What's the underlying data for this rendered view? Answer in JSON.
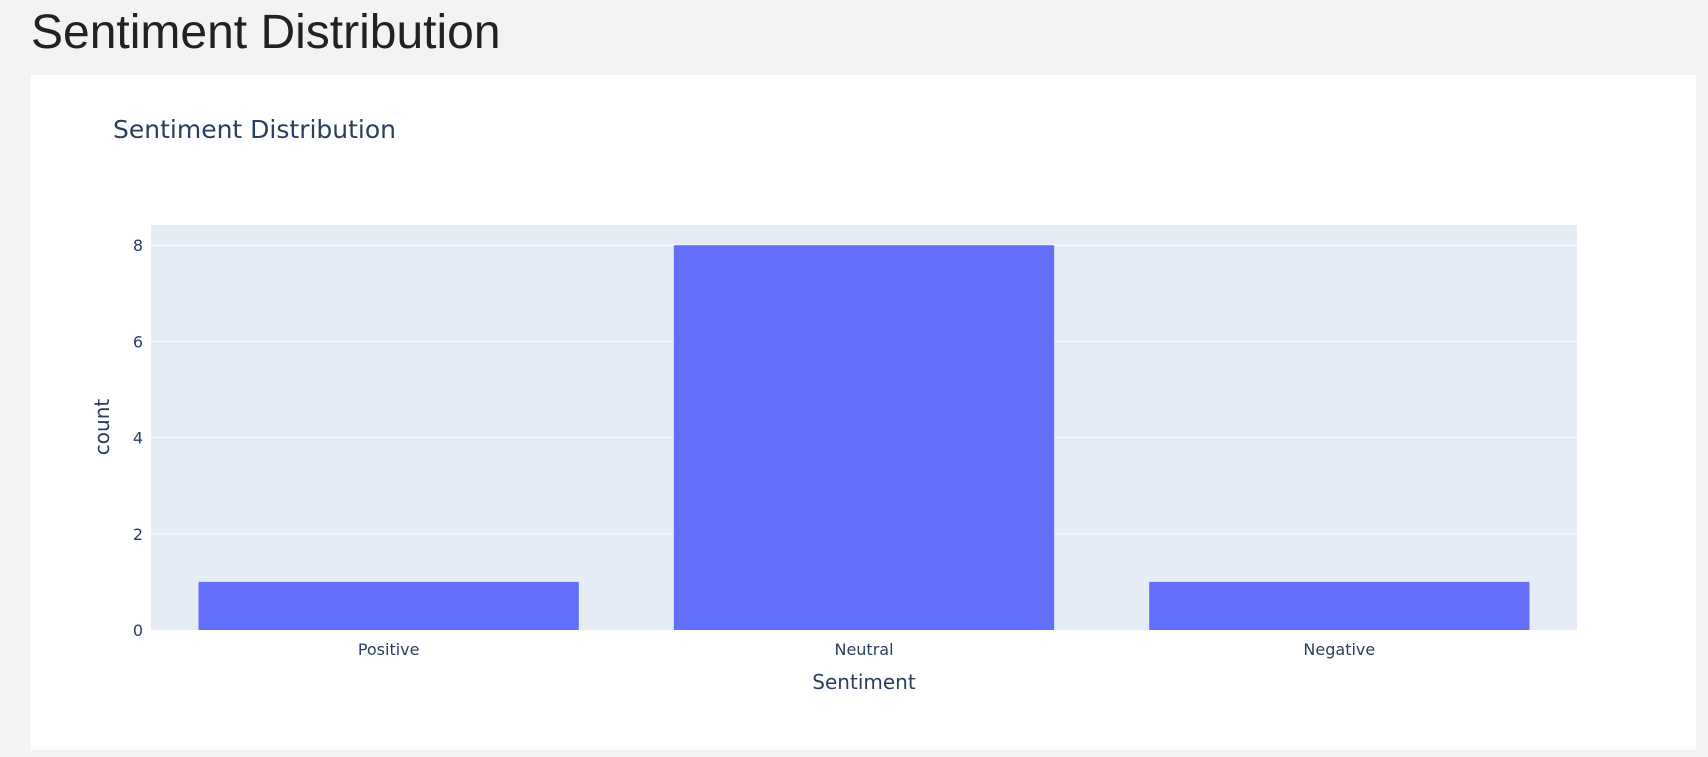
{
  "page": {
    "heading": "Sentiment Distribution"
  },
  "colors": {
    "bar": "#636efa",
    "plot_background": "#e5ecf6",
    "gridline": "#ffffff",
    "text": "#2a3f5f",
    "page_background": "#f3f3f3",
    "card_background": "#ffffff"
  },
  "chart_data": {
    "type": "bar",
    "title": "Sentiment Distribution",
    "xlabel": "Sentiment",
    "ylabel": "count",
    "categories": [
      "Positive",
      "Neutral",
      "Negative"
    ],
    "values": [
      1,
      8,
      1
    ],
    "ylim": [
      0,
      8.42
    ],
    "yticks": [
      0,
      2,
      4,
      6,
      8
    ],
    "grid": true,
    "legend": "none"
  }
}
